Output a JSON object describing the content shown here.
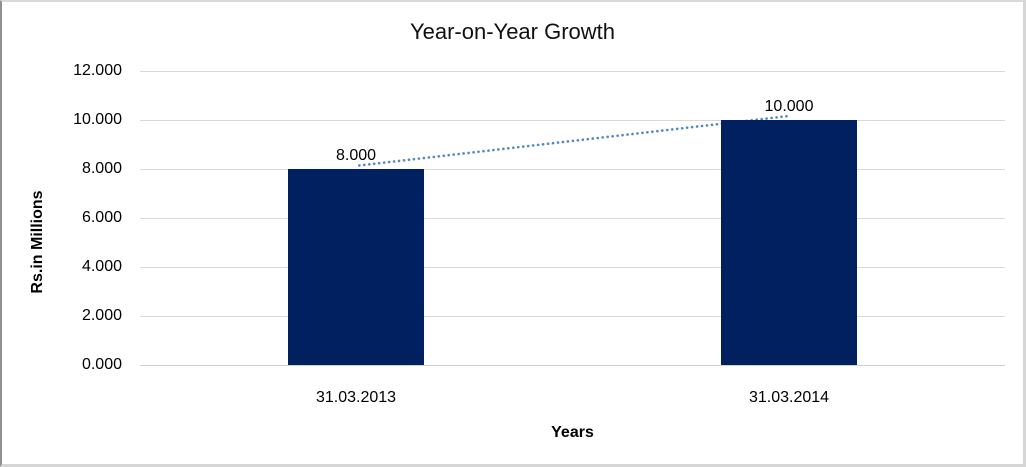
{
  "chart_data": {
    "type": "bar",
    "title": "Year-on-Year Growth",
    "xlabel": "Years",
    "ylabel": "Rs.in Millions",
    "categories": [
      "31.03.2013",
      "31.03.2014"
    ],
    "values": [
      8,
      10
    ],
    "value_labels": [
      "8.000",
      "10.000"
    ],
    "ylim": [
      0,
      12
    ],
    "yticks": [
      0,
      2,
      4,
      6,
      8,
      10,
      12
    ],
    "ytick_labels": [
      "0.000",
      "2.000",
      "4.000",
      "6.000",
      "8.000",
      "10.000",
      "12.000"
    ],
    "grid": true,
    "legend": "none",
    "bar_color": "#002060",
    "gridline_color": "#d9d9d9",
    "text_color": "#000000",
    "trendline": {
      "type": "linear",
      "style": "dotted",
      "color": "#5185C5",
      "from_value": 8,
      "to_value": 10
    }
  }
}
